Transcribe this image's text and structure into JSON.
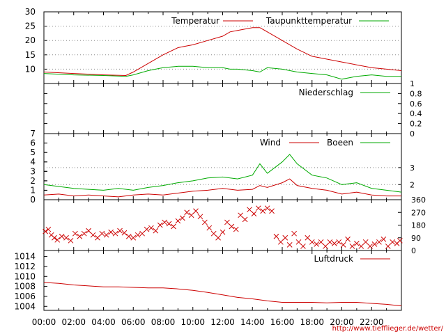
{
  "chart_data": [
    {
      "type": "line",
      "panel": "temperature",
      "y_ticks": [
        10,
        15,
        20,
        25,
        30
      ],
      "ylim": [
        5,
        30
      ],
      "x_hours": [
        0,
        2,
        4,
        5.5,
        6,
        7,
        8,
        9,
        9.5,
        10,
        11,
        12,
        12.5,
        13,
        14,
        14.5,
        15,
        16,
        17,
        18,
        19,
        20,
        21,
        22,
        23,
        24
      ],
      "series": [
        {
          "name": "Temperatur",
          "color": "#cc0000",
          "values": [
            9,
            8.5,
            8,
            7.8,
            9,
            12,
            15,
            17.5,
            18,
            18.5,
            20,
            21.5,
            23,
            23.5,
            24.5,
            24.5,
            23,
            20,
            17,
            14.5,
            13.5,
            12.5,
            11.5,
            10.5,
            10,
            9.5
          ]
        },
        {
          "name": "Taupunkttemperatur",
          "color": "#00aa00",
          "values": [
            8.5,
            8,
            7.8,
            7.5,
            8,
            9.5,
            10.5,
            11,
            11,
            11,
            10.5,
            10.5,
            10,
            10,
            9.5,
            9,
            10.5,
            10,
            9,
            8.5,
            8,
            6.5,
            7.5,
            8,
            7.5,
            7.5
          ]
        }
      ]
    },
    {
      "type": "line",
      "panel": "precipitation",
      "y_ticks": [
        0,
        0.2,
        0.4,
        0.6,
        0.8,
        1
      ],
      "y_tick_labels": [
        "0",
        "0.2",
        "0.4",
        "0.6",
        "0.8",
        "1"
      ],
      "ylim": [
        0,
        1
      ],
      "series": [
        {
          "name": "Niederschlag",
          "color": "#00aa00",
          "values": [
            0,
            0
          ]
        }
      ]
    },
    {
      "type": "line",
      "panel": "wind",
      "y_ticks": [
        0,
        1,
        2,
        3,
        4,
        5,
        6,
        7
      ],
      "right_ticks": [
        {
          "value": 1.6,
          "label": "2"
        },
        {
          "value": 3.4,
          "label": "3"
        }
      ],
      "ylim": [
        0,
        7
      ],
      "x_hours": [
        0,
        1,
        2,
        3,
        4,
        5,
        6,
        7,
        8,
        9,
        10,
        11,
        12,
        13,
        14,
        14.5,
        15,
        16,
        16.5,
        17,
        18,
        19,
        20,
        21,
        22,
        23,
        24
      ],
      "series": [
        {
          "name": "Wind",
          "color": "#cc0000",
          "values": [
            0.5,
            0.6,
            0.4,
            0.5,
            0.4,
            0.3,
            0.5,
            0.6,
            0.5,
            0.7,
            0.9,
            1.0,
            1.2,
            1.0,
            1.1,
            1.5,
            1.3,
            1.8,
            2.2,
            1.5,
            1.2,
            1.0,
            0.6,
            0.8,
            0.5,
            0.4,
            0.4
          ]
        },
        {
          "name": "Boeen",
          "color": "#00aa00",
          "values": [
            1.6,
            1.4,
            1.2,
            1.1,
            1.0,
            1.2,
            1.0,
            1.3,
            1.5,
            1.8,
            2.0,
            2.3,
            2.4,
            2.2,
            2.6,
            3.8,
            2.8,
            4.0,
            4.8,
            3.8,
            2.6,
            2.3,
            1.6,
            1.8,
            1.2,
            1.0,
            0.8
          ]
        }
      ]
    },
    {
      "type": "scatter",
      "panel": "wind_direction",
      "right_ticks": [
        {
          "value": 0,
          "label": "0"
        },
        {
          "value": 90,
          "label": "90"
        },
        {
          "value": 180,
          "label": "180"
        },
        {
          "value": 270,
          "label": "270"
        },
        {
          "value": 360,
          "label": "360"
        }
      ],
      "ylim": [
        0,
        360
      ],
      "marker": "x",
      "color": "#cc0000",
      "points": [
        [
          0.1,
          135
        ],
        [
          0.3,
          150
        ],
        [
          0.5,
          110
        ],
        [
          0.7,
          90
        ],
        [
          0.9,
          75
        ],
        [
          1.2,
          100
        ],
        [
          1.5,
          90
        ],
        [
          1.8,
          70
        ],
        [
          2.1,
          120
        ],
        [
          2.4,
          100
        ],
        [
          2.7,
          120
        ],
        [
          3.0,
          140
        ],
        [
          3.3,
          110
        ],
        [
          3.6,
          90
        ],
        [
          3.9,
          120
        ],
        [
          4.2,
          110
        ],
        [
          4.5,
          130
        ],
        [
          4.8,
          120
        ],
        [
          5.1,
          140
        ],
        [
          5.4,
          125
        ],
        [
          5.7,
          100
        ],
        [
          6.0,
          90
        ],
        [
          6.3,
          110
        ],
        [
          6.6,
          120
        ],
        [
          6.9,
          150
        ],
        [
          7.2,
          160
        ],
        [
          7.5,
          140
        ],
        [
          7.8,
          180
        ],
        [
          8.1,
          200
        ],
        [
          8.4,
          190
        ],
        [
          8.7,
          170
        ],
        [
          9.0,
          210
        ],
        [
          9.3,
          230
        ],
        [
          9.6,
          270
        ],
        [
          9.9,
          250
        ],
        [
          10.2,
          280
        ],
        [
          10.5,
          240
        ],
        [
          10.8,
          200
        ],
        [
          11.1,
          160
        ],
        [
          11.4,
          120
        ],
        [
          11.7,
          90
        ],
        [
          12.0,
          130
        ],
        [
          12.3,
          200
        ],
        [
          12.6,
          170
        ],
        [
          12.9,
          150
        ],
        [
          13.2,
          250
        ],
        [
          13.5,
          220
        ],
        [
          13.8,
          290
        ],
        [
          14.1,
          260
        ],
        [
          14.4,
          300
        ],
        [
          14.7,
          280
        ],
        [
          15.0,
          300
        ],
        [
          15.3,
          280
        ],
        [
          15.6,
          100
        ],
        [
          15.9,
          60
        ],
        [
          16.2,
          90
        ],
        [
          16.5,
          40
        ],
        [
          16.8,
          120
        ],
        [
          17.1,
          60
        ],
        [
          17.4,
          30
        ],
        [
          17.7,
          90
        ],
        [
          18.0,
          60
        ],
        [
          18.3,
          45
        ],
        [
          18.6,
          60
        ],
        [
          18.9,
          30
        ],
        [
          19.2,
          60
        ],
        [
          19.5,
          50
        ],
        [
          19.8,
          60
        ],
        [
          20.1,
          40
        ],
        [
          20.4,
          80
        ],
        [
          20.7,
          30
        ],
        [
          21.0,
          50
        ],
        [
          21.3,
          30
        ],
        [
          21.6,
          60
        ],
        [
          21.9,
          30
        ],
        [
          22.2,
          45
        ],
        [
          22.5,
          60
        ],
        [
          22.8,
          80
        ],
        [
          23.1,
          30
        ],
        [
          23.4,
          60
        ],
        [
          23.7,
          50
        ],
        [
          23.9,
          70
        ]
      ]
    },
    {
      "type": "line",
      "panel": "pressure",
      "y_ticks": [
        1004,
        1006,
        1008,
        1010,
        1012,
        1014
      ],
      "ylim": [
        1003.2,
        1015.2
      ],
      "x_hours": [
        0,
        1,
        2,
        3,
        4,
        5,
        6,
        7,
        8,
        9,
        10,
        11,
        12,
        13,
        14,
        15,
        16,
        17,
        18,
        19,
        20,
        21,
        22,
        23,
        24
      ],
      "series": [
        {
          "name": "Luftdruck",
          "color": "#cc0000",
          "values": [
            1008.8,
            1008.6,
            1008.3,
            1008.1,
            1007.9,
            1007.9,
            1007.8,
            1007.7,
            1007.7,
            1007.5,
            1007.2,
            1006.8,
            1006.3,
            1005.8,
            1005.5,
            1005.1,
            1004.8,
            1004.8,
            1004.8,
            1004.7,
            1004.8,
            1004.8,
            1004.6,
            1004.4,
            1004.1
          ]
        }
      ]
    }
  ],
  "x_axis": {
    "tick_labels": [
      "00:00",
      "02:00",
      "04:00",
      "06:00",
      "08:00",
      "10:00",
      "12:00",
      "14:00",
      "16:00",
      "18:00",
      "20:00",
      "22:00"
    ]
  },
  "footer": {
    "url": "http://www.tiefflieger.de/wetter/"
  }
}
